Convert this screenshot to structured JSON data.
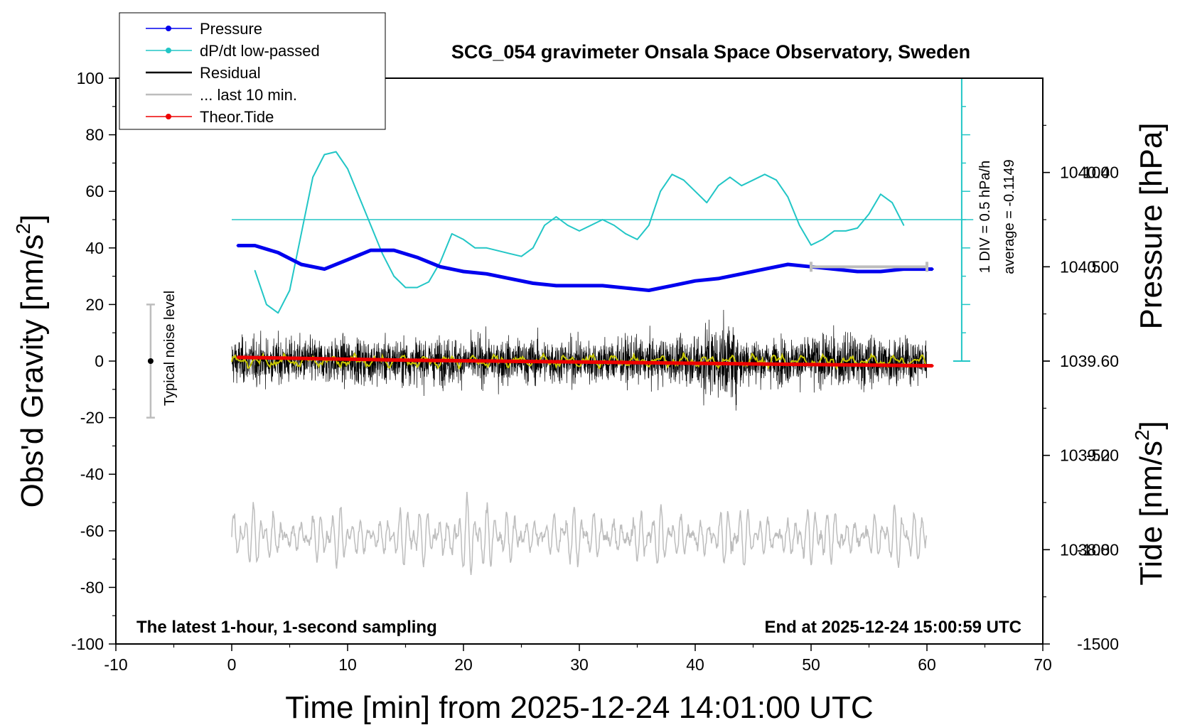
{
  "chart_data": {
    "type": "line",
    "title": "SCG_054 gravimeter Onsala Space Observatory, Sweden",
    "xlabel": "Time [min] from 2025-12-24 14:01:00 UTC",
    "ylabel_left": "Obs'd Gravity [nm/s",
    "ylabel_right_top": "Pressure [hPa]",
    "ylabel_right_bottom": "Tide [nm/s",
    "sup2": "2",
    "xlim": [
      -10,
      70
    ],
    "ylim": [
      -100,
      100
    ],
    "pressure_lim": [
      1038.4,
      1040.8
    ],
    "tide_lim": [
      -1500,
      1500
    ],
    "x_ticks": [
      "-10",
      "0",
      "10",
      "20",
      "30",
      "40",
      "50",
      "60",
      "70"
    ],
    "y_ticks": [
      "-100",
      "-80",
      "-60",
      "-40",
      "-20",
      "0",
      "20",
      "40",
      "60",
      "80",
      "100"
    ],
    "pressure_ticks": [
      "1038.8",
      "1039.2",
      "1039.6",
      "1040.0",
      "1040.4"
    ],
    "tide_ticks": [
      "-1500",
      "-1000",
      "-500",
      "0",
      "500",
      "1000"
    ],
    "legend": [
      {
        "label": "Pressure",
        "color": "#0000ee",
        "marker": true
      },
      {
        "label": "dP/dt low-passed",
        "color": "#22c6c6",
        "marker": true
      },
      {
        "label": "Residual",
        "color": "#000000",
        "marker": false
      },
      {
        "label": "... last 10 min.",
        "color": "#bdbdbd",
        "marker": false
      },
      {
        "label": "Theor.Tide",
        "color": "#ee0000",
        "marker": true
      }
    ],
    "annotations": {
      "bottom_left": "The latest 1-hour, 1-second sampling",
      "bottom_right": "End at 2025-12-24 15:00:59 UTC",
      "noise": "Typical noise level",
      "dpdt_scale": "1 DIV = 0.5 hPa/h",
      "dpdt_average": "average = -0.1149"
    },
    "noise_bar": {
      "x": -7,
      "center": 0,
      "low": -20,
      "high": 20
    },
    "ten_min_bar": {
      "x_start": 50,
      "x_end": 60,
      "tide": 500
    },
    "dpdt_zero_level": 50,
    "series": [
      {
        "name": "Pressure",
        "axis": "pressure",
        "color": "#0000ee",
        "x": [
          0.5,
          2,
          4,
          6,
          8,
          10,
          12,
          14,
          16,
          18,
          20,
          22,
          24,
          26,
          28,
          30,
          32,
          34,
          36,
          38,
          40,
          42,
          44,
          46,
          48,
          50,
          52,
          54,
          56,
          58,
          60.5
        ],
        "y": [
          1040.09,
          1040.09,
          1040.06,
          1040.01,
          1039.99,
          1040.03,
          1040.07,
          1040.07,
          1040.04,
          1040.0,
          1039.98,
          1039.97,
          1039.95,
          1039.93,
          1039.92,
          1039.92,
          1039.92,
          1039.91,
          1039.9,
          1039.92,
          1039.94,
          1039.95,
          1039.97,
          1039.99,
          1040.01,
          1040.0,
          1039.99,
          1039.98,
          1039.98,
          1039.99,
          1039.99
        ]
      },
      {
        "name": "dP/dt low-passed",
        "axis": "gravity",
        "color": "#22c6c6",
        "x": [
          2,
          3,
          4,
          5,
          6,
          7,
          8,
          9,
          10,
          11,
          12,
          13,
          14,
          15,
          16,
          17,
          18,
          19,
          20,
          21,
          22,
          23,
          24,
          25,
          26,
          27,
          28,
          29,
          30,
          31,
          32,
          33,
          34,
          35,
          36,
          37,
          38,
          39,
          40,
          41,
          42,
          43,
          44,
          45,
          46,
          47,
          48,
          49,
          50,
          51,
          52,
          53,
          54,
          55,
          56,
          57,
          58
        ],
        "y": [
          32,
          20,
          17,
          25,
          45,
          65,
          73,
          74,
          68,
          58,
          48,
          38,
          30,
          26,
          26,
          28,
          35,
          45,
          43,
          40,
          40,
          39,
          38,
          37,
          40,
          48,
          51,
          48,
          46,
          48,
          50,
          48,
          45,
          43,
          48,
          60,
          66,
          64,
          60,
          56,
          62,
          65,
          62,
          64,
          66,
          64,
          58,
          48,
          41,
          43,
          46,
          46,
          47,
          52,
          59,
          56,
          48
        ]
      },
      {
        "name": "Theor.Tide",
        "axis": "tide",
        "color": "#ee0000",
        "x": [
          0.5,
          15,
          30,
          45,
          60.5
        ],
        "y": [
          20,
          5,
          -5,
          -15,
          -25
        ]
      }
    ]
  }
}
